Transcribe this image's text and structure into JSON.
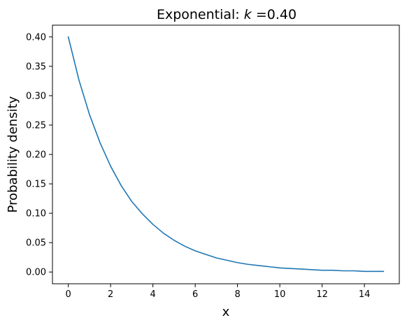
{
  "chart_data": {
    "type": "line",
    "title_prefix": "Exponential: ",
    "title_symbol": "k",
    "title_suffix": " =0.40",
    "xlabel": "x",
    "ylabel": "Probability density",
    "xlim": [
      -0.75,
      15.65
    ],
    "ylim": [
      -0.02,
      0.42
    ],
    "xticks": [
      0,
      2,
      4,
      6,
      8,
      10,
      12,
      14
    ],
    "xtick_labels": [
      "0",
      "2",
      "4",
      "6",
      "8",
      "10",
      "12",
      "14"
    ],
    "yticks": [
      0.0,
      0.05,
      0.1,
      0.15,
      0.2,
      0.25,
      0.3,
      0.35,
      0.4
    ],
    "ytick_labels": [
      "0.00",
      "0.05",
      "0.10",
      "0.15",
      "0.20",
      "0.25",
      "0.30",
      "0.35",
      "0.40"
    ],
    "grid": false,
    "series": [
      {
        "color": "#1f77b4",
        "x": [
          0,
          0.5,
          1,
          1.5,
          2,
          2.5,
          3,
          3.5,
          4,
          4.5,
          5,
          5.5,
          6,
          6.5,
          7,
          7.5,
          8,
          8.5,
          9,
          9.5,
          10,
          10.5,
          11,
          11.5,
          12,
          12.5,
          13,
          13.5,
          14,
          14.5,
          14.9
        ],
        "y": [
          0.4,
          0.327,
          0.268,
          0.22,
          0.18,
          0.147,
          0.12,
          0.099,
          0.081,
          0.066,
          0.054,
          0.044,
          0.036,
          0.03,
          0.024,
          0.02,
          0.016,
          0.013,
          0.011,
          0.009,
          0.007,
          0.006,
          0.005,
          0.004,
          0.003,
          0.003,
          0.002,
          0.002,
          0.001,
          0.001,
          0.001
        ]
      }
    ]
  }
}
